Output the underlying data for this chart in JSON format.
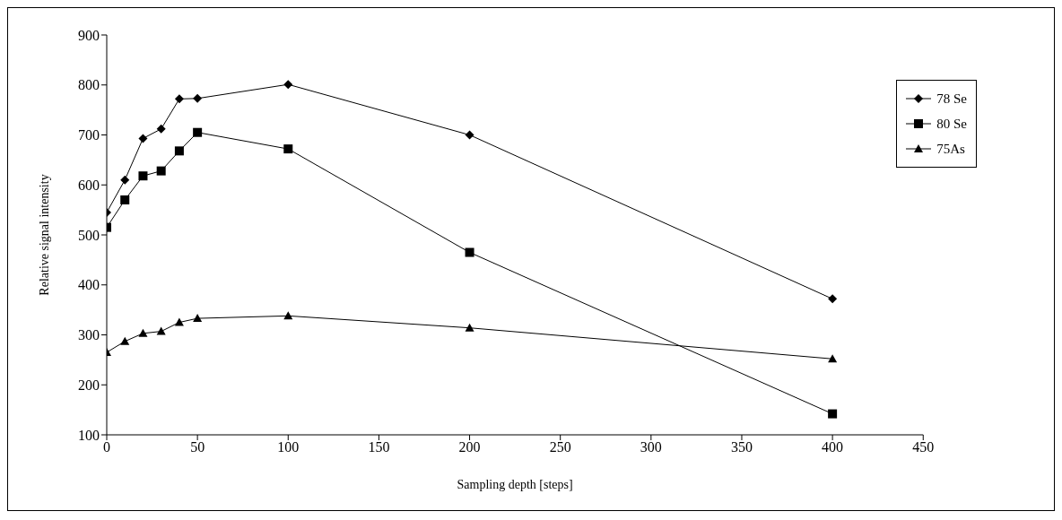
{
  "chart_data": {
    "type": "line",
    "xlabel": "Sampling depth [steps]",
    "ylabel": "Relative signal intensity",
    "x": [
      0,
      10,
      20,
      30,
      40,
      50,
      100,
      200,
      400
    ],
    "series": [
      {
        "name": "78 Se",
        "color": "#000000",
        "marker": "diamond",
        "values": [
          545,
          610,
          693,
          712,
          772,
          773,
          801,
          700,
          372
        ]
      },
      {
        "name": "80 Se",
        "color": "#000000",
        "marker": "square",
        "values": [
          515,
          570,
          618,
          628,
          668,
          705,
          672,
          465,
          142
        ]
      },
      {
        "name": "75As",
        "color": "#000000",
        "marker": "triangle",
        "values": [
          265,
          287,
          303,
          307,
          325,
          333,
          338,
          314,
          252
        ]
      }
    ],
    "xlim": [
      0,
      450
    ],
    "xticks": [
      0,
      50,
      100,
      150,
      200,
      250,
      300,
      350,
      400,
      450
    ],
    "ylim": [
      100,
      900
    ],
    "yticks": [
      100,
      200,
      300,
      400,
      500,
      600,
      700,
      800,
      900
    ],
    "grid": false,
    "legend": "top right",
    "line_style": "solid"
  }
}
